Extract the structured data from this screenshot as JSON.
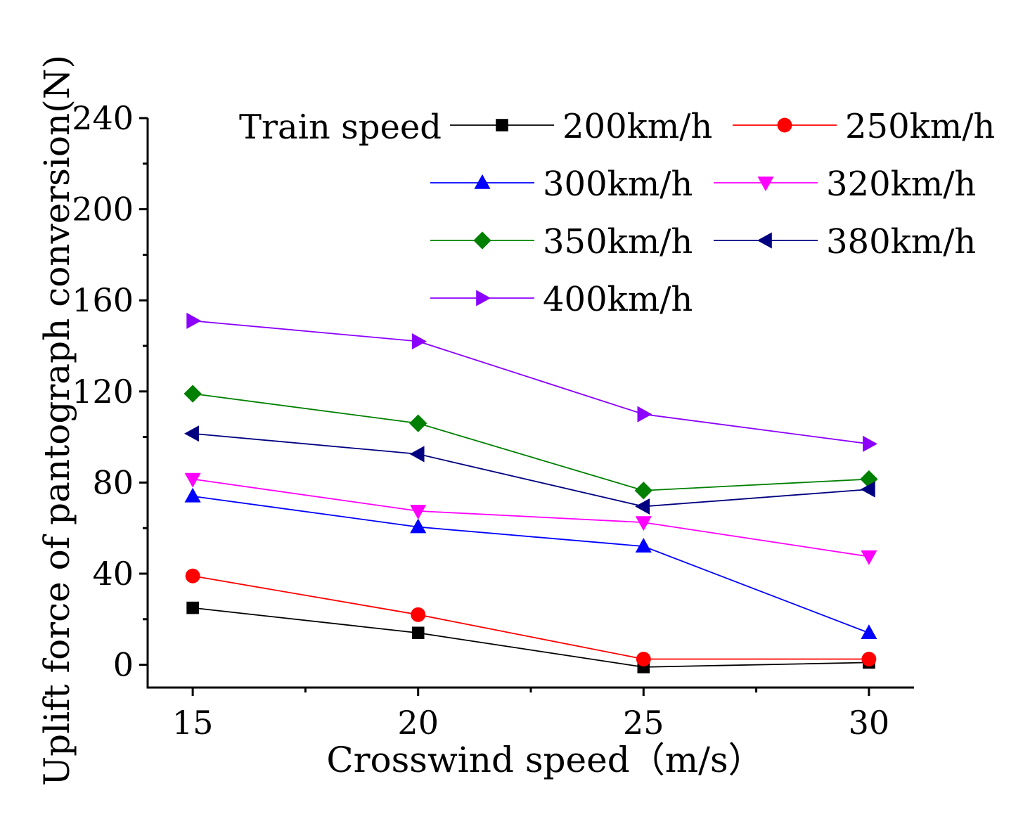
{
  "chart_data": {
    "type": "line",
    "title": "",
    "xlabel": "Crosswind speed（m/s）",
    "ylabel": "Uplift force of pantograph conversion(N)",
    "x": [
      15,
      20,
      25,
      30
    ],
    "xlim": [
      14,
      31
    ],
    "ylim": [
      -10,
      240
    ],
    "xticks": [
      15,
      20,
      25,
      30
    ],
    "yticks": [
      0,
      40,
      80,
      120,
      160,
      200,
      240
    ],
    "grid": false,
    "legend_title": "Train speed",
    "legend_position": "top-right",
    "series": [
      {
        "name": "200km/h",
        "color": "#000000",
        "marker": "square",
        "values": [
          25,
          14,
          -1,
          1
        ]
      },
      {
        "name": "250km/h",
        "color": "#ff0000",
        "marker": "circle",
        "values": [
          39,
          22,
          2.5,
          2.5
        ]
      },
      {
        "name": "300km/h",
        "color": "#0000ff",
        "marker": "triangle-up",
        "values": [
          74,
          60.5,
          52,
          14
        ]
      },
      {
        "name": "320km/h",
        "color": "#ff00ff",
        "marker": "triangle-down",
        "values": [
          81.5,
          67.5,
          62.5,
          47.5
        ]
      },
      {
        "name": "350km/h",
        "color": "#008000",
        "marker": "diamond",
        "values": [
          119,
          106,
          76.5,
          81.5
        ]
      },
      {
        "name": "380km/h",
        "color": "#000080",
        "marker": "triangle-left",
        "values": [
          101.5,
          92.5,
          69.5,
          77
        ]
      },
      {
        "name": "400km/h",
        "color": "#8b00ff",
        "marker": "triangle-right",
        "values": [
          151,
          142,
          110,
          97
        ]
      }
    ]
  }
}
